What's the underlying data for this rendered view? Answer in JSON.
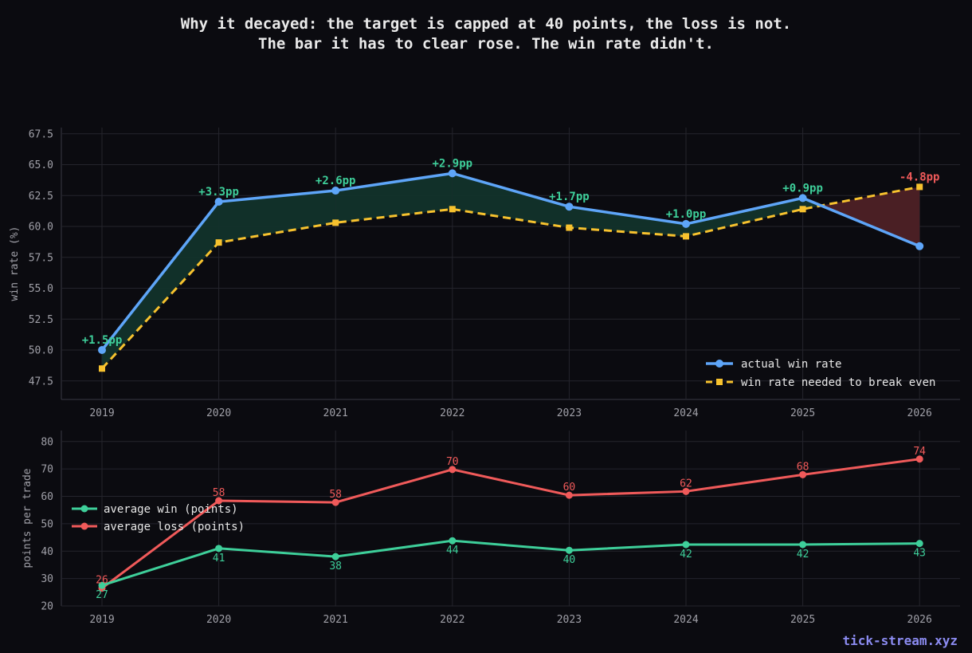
{
  "title_lines": [
    "Why it decayed: the target is capped at 40 points, the loss is not.",
    "The bar it has to clear rose. The win rate didn't."
  ],
  "brand": "tick-stream.xyz",
  "colors": {
    "background": "#0b0b10",
    "grid": "#24242c",
    "tick_text": "#a0a0a8",
    "actual_win_rate": "#5ea5f8",
    "break_even": "#f7c22e",
    "positive": "#3ecf9a",
    "negative": "#f05a5a",
    "avg_win": "#3ecf9a",
    "avg_loss": "#f05a5a"
  },
  "chart_data": [
    {
      "type": "line",
      "x": [
        "2019",
        "2020",
        "2021",
        "2022",
        "2023",
        "2024",
        "2025",
        "2026"
      ],
      "ylabel": "win rate (%)",
      "xlabel": "",
      "ylim": [
        46,
        68
      ],
      "yticks": [
        "47.5",
        "50.0",
        "52.5",
        "55.0",
        "57.5",
        "60.0",
        "62.5",
        "65.0",
        "67.5"
      ],
      "grid": true,
      "legend_position": "bottom-right",
      "series": [
        {
          "name": "actual win rate",
          "values": [
            50.0,
            62.0,
            62.9,
            64.3,
            61.6,
            60.2,
            62.3,
            58.4
          ]
        },
        {
          "name": "win rate needed to break even",
          "values": [
            48.5,
            58.7,
            60.3,
            61.4,
            59.9,
            59.2,
            61.4,
            63.2
          ]
        }
      ],
      "annotations": [
        "+1.5pp",
        "+3.3pp",
        "+2.6pp",
        "+2.9pp",
        "+1.7pp",
        "+1.0pp",
        "+0.9pp",
        "-4.8pp"
      ]
    },
    {
      "type": "line",
      "x": [
        "2019",
        "2020",
        "2021",
        "2022",
        "2023",
        "2024",
        "2025",
        "2026"
      ],
      "ylabel": "points per trade",
      "xlabel": "",
      "ylim": [
        20,
        84
      ],
      "yticks": [
        "20",
        "30",
        "40",
        "50",
        "60",
        "70",
        "80"
      ],
      "grid": true,
      "legend_position": "center-left",
      "series": [
        {
          "name": "average win (points)",
          "values": [
            27.5,
            41,
            38,
            43.8,
            40.3,
            42.4,
            42.4,
            42.8
          ],
          "labels": [
            "27",
            "41",
            "38",
            "44",
            "40",
            "42",
            "42",
            "43"
          ]
        },
        {
          "name": "average loss (points)",
          "values": [
            26.5,
            58.4,
            57.8,
            69.8,
            60.4,
            61.8,
            67.9,
            73.6
          ],
          "labels": [
            "26",
            "58",
            "58",
            "70",
            "60",
            "62",
            "68",
            "74"
          ]
        }
      ]
    }
  ]
}
